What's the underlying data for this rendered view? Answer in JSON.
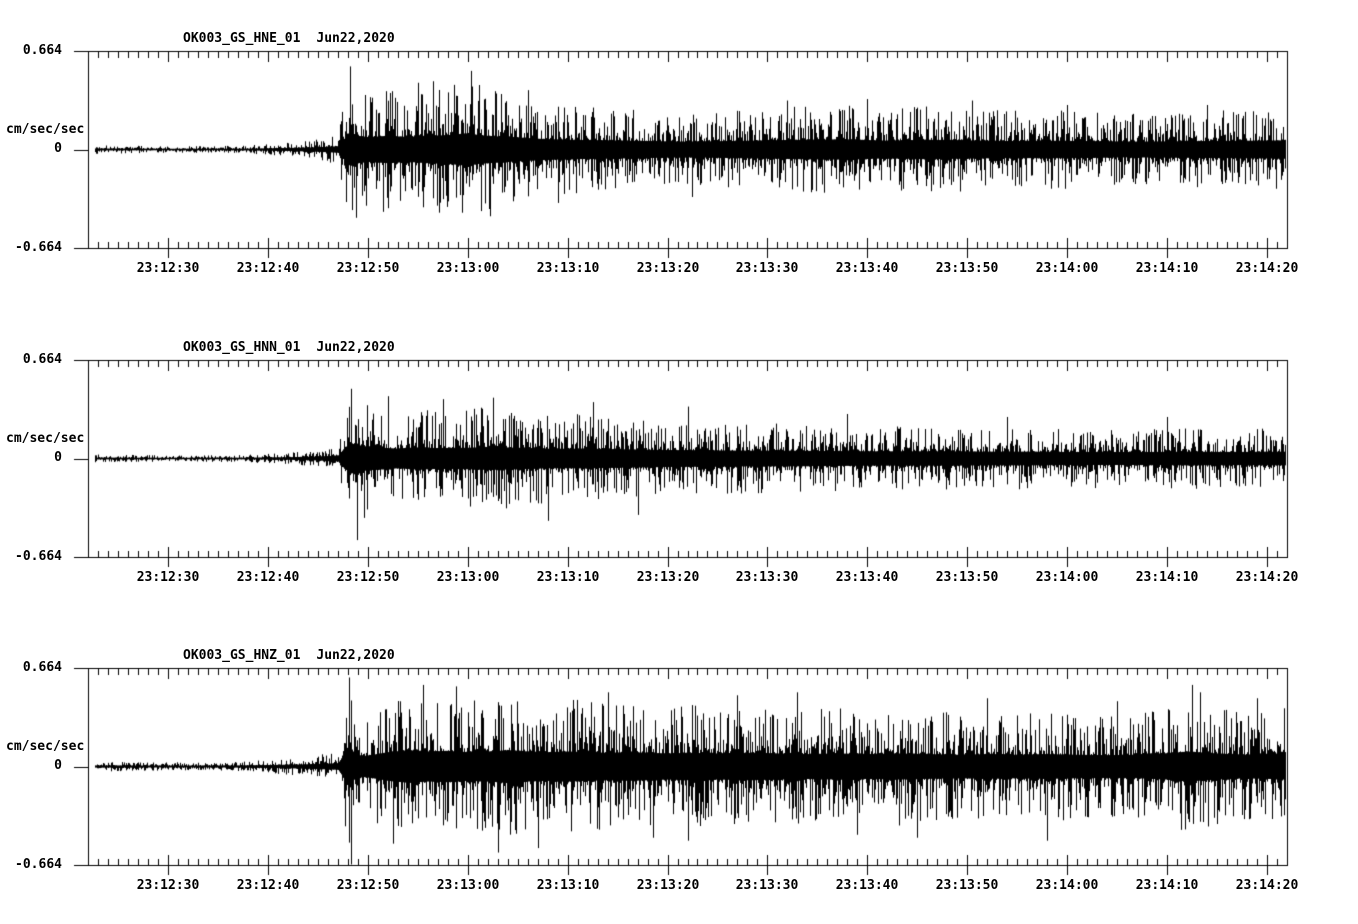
{
  "page": {
    "background_color": "#ffffff",
    "trace_color": "#000000",
    "text_color": "#000000"
  },
  "time_axis": {
    "start_time": "23:12:22",
    "end_time": "23:14:22",
    "span_seconds": 120,
    "minor_tick_step_seconds": 1,
    "major_tick_step_seconds": 10,
    "first_major_offset_seconds": 8,
    "x_major_labels": [
      "23:12:30",
      "23:12:40",
      "23:12:50",
      "23:13:00",
      "23:13:10",
      "23:13:20",
      "23:13:30",
      "23:13:40",
      "23:13:50",
      "23:14:00",
      "23:14:10",
      "23:14:20"
    ]
  },
  "chart_data": [
    {
      "type": "line",
      "kind": "seismogram",
      "title": "OK003_GS_HNE_01",
      "date": "Jun22,2020",
      "ylabel": "cm/sec/sec",
      "y_ticks": [
        "0.664",
        "0",
        "-0.664"
      ],
      "ylim": [
        -0.664,
        0.664
      ],
      "grid": false,
      "legend": "none",
      "seed": 1101,
      "trace_start_s": 0.7,
      "trace_end_s": 119.8,
      "envelope": [
        [
          0.7,
          0.03
        ],
        [
          6,
          0.024
        ],
        [
          12,
          0.022
        ],
        [
          16,
          0.028
        ],
        [
          20,
          0.045
        ],
        [
          23,
          0.07
        ],
        [
          25,
          0.1
        ],
        [
          25.6,
          0.32
        ],
        [
          26.2,
          0.5
        ],
        [
          27,
          0.42
        ],
        [
          28,
          0.38
        ],
        [
          30,
          0.42
        ],
        [
          32,
          0.38
        ],
        [
          34,
          0.42
        ],
        [
          36,
          0.44
        ],
        [
          38,
          0.5
        ],
        [
          39,
          0.44
        ],
        [
          42,
          0.38
        ],
        [
          45,
          0.33
        ],
        [
          48,
          0.3
        ],
        [
          52,
          0.28
        ],
        [
          56,
          0.26
        ],
        [
          60,
          0.24
        ],
        [
          64,
          0.26
        ],
        [
          68,
          0.28
        ],
        [
          72,
          0.3
        ],
        [
          76,
          0.31
        ],
        [
          80,
          0.27
        ],
        [
          84,
          0.3
        ],
        [
          88,
          0.28
        ],
        [
          92,
          0.26
        ],
        [
          96,
          0.27
        ],
        [
          100,
          0.26
        ],
        [
          104,
          0.24
        ],
        [
          108,
          0.25
        ],
        [
          112,
          0.26
        ],
        [
          116,
          0.27
        ],
        [
          119.8,
          0.28
        ]
      ],
      "spikes": [
        [
          26.2,
          0.56
        ],
        [
          26.8,
          -0.46
        ],
        [
          29.5,
          -0.42
        ],
        [
          33.0,
          0.45
        ],
        [
          34.5,
          0.46
        ],
        [
          38.3,
          0.53
        ],
        [
          40.2,
          -0.45
        ],
        [
          44.0,
          0.4
        ],
        [
          47.0,
          -0.36
        ],
        [
          60.5,
          -0.32
        ],
        [
          70.0,
          0.33
        ],
        [
          78.0,
          0.34
        ],
        [
          88.5,
          0.33
        ],
        [
          98.0,
          0.3
        ],
        [
          112.0,
          0.3
        ]
      ]
    },
    {
      "type": "line",
      "kind": "seismogram",
      "title": "OK003_GS_HNN_01",
      "date": "Jun22,2020",
      "ylabel": "cm/sec/sec",
      "y_ticks": [
        "0.664",
        "0",
        "-0.664"
      ],
      "ylim": [
        -0.664,
        0.664
      ],
      "grid": false,
      "legend": "none",
      "seed": 2202,
      "trace_start_s": 0.7,
      "trace_end_s": 119.8,
      "envelope": [
        [
          0.7,
          0.028
        ],
        [
          6,
          0.023
        ],
        [
          12,
          0.022
        ],
        [
          16,
          0.026
        ],
        [
          20,
          0.04
        ],
        [
          23,
          0.06
        ],
        [
          25,
          0.09
        ],
        [
          25.6,
          0.3
        ],
        [
          26.3,
          0.46
        ],
        [
          27.5,
          0.38
        ],
        [
          29,
          0.34
        ],
        [
          31,
          0.3
        ],
        [
          33,
          0.34
        ],
        [
          35,
          0.32
        ],
        [
          38,
          0.33
        ],
        [
          40,
          0.35
        ],
        [
          43,
          0.33
        ],
        [
          46,
          0.3
        ],
        [
          50,
          0.3
        ],
        [
          54,
          0.28
        ],
        [
          58,
          0.26
        ],
        [
          62,
          0.25
        ],
        [
          66,
          0.24
        ],
        [
          70,
          0.24
        ],
        [
          74,
          0.23
        ],
        [
          78,
          0.22
        ],
        [
          82,
          0.22
        ],
        [
          86,
          0.22
        ],
        [
          90,
          0.21
        ],
        [
          94,
          0.21
        ],
        [
          98,
          0.2
        ],
        [
          102,
          0.2
        ],
        [
          106,
          0.2
        ],
        [
          110,
          0.21
        ],
        [
          114,
          0.2
        ],
        [
          119.8,
          0.21
        ]
      ],
      "spikes": [
        [
          26.3,
          0.47
        ],
        [
          26.9,
          -0.55
        ],
        [
          27.6,
          -0.4
        ],
        [
          30.0,
          0.42
        ],
        [
          35.5,
          0.4
        ],
        [
          40.5,
          0.41
        ],
        [
          46.0,
          -0.42
        ],
        [
          50.5,
          0.38
        ],
        [
          55.0,
          -0.38
        ],
        [
          60.0,
          0.35
        ],
        [
          76.0,
          0.3
        ],
        [
          92.0,
          0.28
        ],
        [
          108.0,
          0.28
        ]
      ]
    },
    {
      "type": "line",
      "kind": "seismogram",
      "title": "OK003_GS_HNZ_01",
      "date": "Jun22,2020",
      "ylabel": "cm/sec/sec",
      "y_ticks": [
        "0.664",
        "0",
        "-0.664"
      ],
      "ylim": [
        -0.664,
        0.664
      ],
      "grid": false,
      "legend": "none",
      "seed": 3303,
      "trace_start_s": 0.7,
      "trace_end_s": 119.8,
      "envelope": [
        [
          0.7,
          0.034
        ],
        [
          6,
          0.03
        ],
        [
          10,
          0.028
        ],
        [
          14,
          0.03
        ],
        [
          18,
          0.045
        ],
        [
          21,
          0.06
        ],
        [
          23,
          0.08
        ],
        [
          25,
          0.1
        ],
        [
          25.7,
          0.4
        ],
        [
          26.1,
          0.62
        ],
        [
          26.6,
          0.4
        ],
        [
          27.5,
          0.32
        ],
        [
          28.5,
          0.36
        ],
        [
          30,
          0.44
        ],
        [
          32,
          0.5
        ],
        [
          34,
          0.46
        ],
        [
          36,
          0.48
        ],
        [
          38,
          0.44
        ],
        [
          40,
          0.46
        ],
        [
          42,
          0.5
        ],
        [
          44,
          0.46
        ],
        [
          46,
          0.44
        ],
        [
          48,
          0.46
        ],
        [
          50,
          0.44
        ],
        [
          52,
          0.42
        ],
        [
          54,
          0.44
        ],
        [
          56,
          0.42
        ],
        [
          58,
          0.4
        ],
        [
          60,
          0.42
        ],
        [
          63,
          0.4
        ],
        [
          66,
          0.42
        ],
        [
          69,
          0.4
        ],
        [
          72,
          0.38
        ],
        [
          75,
          0.4
        ],
        [
          78,
          0.38
        ],
        [
          81,
          0.4
        ],
        [
          84,
          0.38
        ],
        [
          87,
          0.36
        ],
        [
          90,
          0.38
        ],
        [
          93,
          0.36
        ],
        [
          96,
          0.38
        ],
        [
          99,
          0.36
        ],
        [
          102,
          0.35
        ],
        [
          105,
          0.36
        ],
        [
          108,
          0.4
        ],
        [
          110,
          0.46
        ],
        [
          112,
          0.42
        ],
        [
          114,
          0.38
        ],
        [
          116,
          0.36
        ],
        [
          118,
          0.38
        ],
        [
          119.8,
          0.4
        ]
      ],
      "spikes": [
        [
          26.1,
          0.6
        ],
        [
          26.35,
          -0.66
        ],
        [
          30.5,
          -0.52
        ],
        [
          33.5,
          0.55
        ],
        [
          36.8,
          0.54
        ],
        [
          41.0,
          -0.58
        ],
        [
          45.0,
          -0.55
        ],
        [
          52.0,
          0.5
        ],
        [
          56.5,
          -0.48
        ],
        [
          60.0,
          -0.5
        ],
        [
          65.0,
          0.48
        ],
        [
          71.0,
          0.5
        ],
        [
          77.0,
          -0.46
        ],
        [
          83.0,
          -0.48
        ],
        [
          90.0,
          0.46
        ],
        [
          96.0,
          -0.5
        ],
        [
          103.0,
          0.44
        ],
        [
          110.5,
          0.55
        ],
        [
          111.3,
          0.5
        ],
        [
          117.0,
          0.46
        ]
      ]
    }
  ]
}
